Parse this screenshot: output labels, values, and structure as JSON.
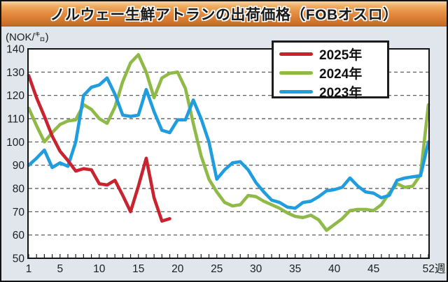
{
  "title": "ノルウェー生鮮アトランの出荷価格（FOBオスロ）",
  "unit_label": "(NOK/㌔)",
  "colors": {
    "background": "#e0e6ec",
    "plot_background": "#ffffff",
    "border": "#131313",
    "grid": "#4d4d4d",
    "axis_text": "#1d1d1d",
    "red_2025": "#c8232f",
    "green_2024": "#8fba47",
    "blue_2023": "#1f9dde"
  },
  "legend": {
    "position": "top-right",
    "items": [
      {
        "label": "2025年",
        "color": "#c8232f"
      },
      {
        "label": "2024年",
        "color": "#8fba47"
      },
      {
        "label": "2023年",
        "color": "#1f9dde"
      }
    ]
  },
  "chart_data": {
    "type": "line",
    "title": "ノルウェー生鮮アトランの出荷価格（FOBオスロ）",
    "ylabel": "(NOK/㌔)",
    "xlabel": "週",
    "x_axis_suffix": "週",
    "xlim": [
      1,
      52
    ],
    "ylim": [
      50,
      140
    ],
    "grid": "horizontal-dashed",
    "y_ticks": [
      50,
      60,
      70,
      80,
      90,
      100,
      110,
      120,
      130,
      140
    ],
    "x_minor_tick_every": 1,
    "x_ticks": [
      {
        "w": 1,
        "label": "1"
      },
      {
        "w": 5,
        "label": "5"
      },
      {
        "w": 10,
        "label": "10"
      },
      {
        "w": 15,
        "label": "15"
      },
      {
        "w": 20,
        "label": "20"
      },
      {
        "w": 25,
        "label": "25"
      },
      {
        "w": 30,
        "label": "30"
      },
      {
        "w": 35,
        "label": "35"
      },
      {
        "w": 40,
        "label": "40"
      },
      {
        "w": 45,
        "label": "45"
      },
      {
        "w": 52,
        "label": "52週"
      }
    ],
    "series": [
      {
        "name": "2024年",
        "color": "#8fba47",
        "start_week": 1,
        "values": [
          114.5,
          107,
          100,
          104,
          107.5,
          109,
          109.5,
          116,
          114,
          110,
          108,
          115,
          126,
          134,
          137.5,
          130,
          119,
          127.5,
          129.5,
          130,
          123,
          108,
          94,
          84,
          78.5,
          74,
          72.5,
          73,
          77,
          76.5,
          74.5,
          73,
          71.5,
          69.5,
          68,
          67.5,
          68.5,
          66.5,
          62,
          64.5,
          67,
          70.5,
          71,
          71,
          70.5,
          73,
          78,
          82,
          80.5,
          81,
          86,
          116
        ]
      },
      {
        "name": "2023年",
        "color": "#1f9dde",
        "start_week": 1,
        "values": [
          90,
          93,
          96.5,
          89,
          91,
          89.5,
          100,
          120,
          123.5,
          124.5,
          127.5,
          120.5,
          111.5,
          111,
          111.5,
          122.5,
          113,
          105,
          104,
          109.5,
          109.5,
          118,
          110,
          100,
          84,
          88,
          91,
          91.5,
          88,
          82.5,
          78.5,
          75,
          74,
          72,
          71.5,
          74,
          74.5,
          76.5,
          79,
          79.5,
          80.5,
          84.5,
          81,
          78.5,
          78,
          76,
          77,
          83.5,
          84.5,
          85,
          85.5,
          100
        ]
      },
      {
        "name": "2025年",
        "color": "#c8232f",
        "start_week": 1,
        "values": [
          128.5,
          119,
          111,
          102.5,
          96,
          92,
          87.5,
          88.5,
          88,
          82,
          81.5,
          83.5,
          77,
          70,
          81,
          93,
          76,
          66,
          67
        ]
      }
    ]
  }
}
